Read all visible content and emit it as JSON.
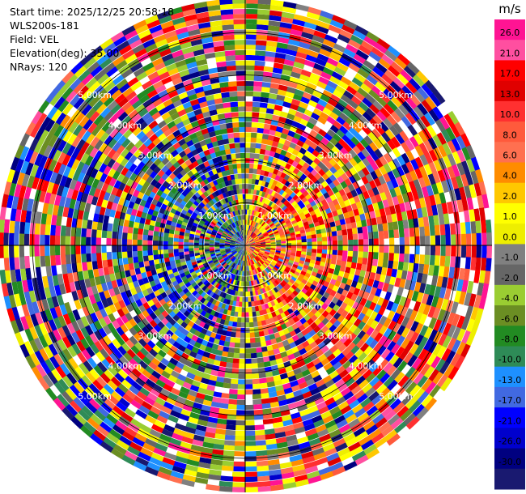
{
  "info": {
    "start_time": "Start time: 2025/12/25 20:58:18",
    "instrument": "WLS200s-181",
    "field": "Field: VEL",
    "elevation": "Elevation(deg): 35.00",
    "nrays": "NRays: 120"
  },
  "chart_data": {
    "type": "heatmap",
    "projection": "polar-ppi",
    "field": "VEL",
    "units": "m/s",
    "nrays": 120,
    "elevation_deg": 35.0,
    "range_rings_km": [
      1,
      2,
      3,
      4,
      5
    ],
    "range_ring_labels": [
      "1.00km",
      "2.00km",
      "3.00km",
      "4.00km",
      "5.00km"
    ],
    "max_range_km": 5.8,
    "colorbar": {
      "label": "m/s",
      "ticks": [
        "26.0",
        "21.0",
        "17.0",
        "13.0",
        "10.0",
        "8.0",
        "6.0",
        "4.0",
        "2.0",
        "1.0",
        "0.0",
        "-1.0",
        "-2.0",
        "-4.0",
        "-6.0",
        "-8.0",
        "-10.0",
        "-13.0",
        "-17.0",
        "-21.0",
        "-26.0",
        "-30.0"
      ],
      "colors": [
        "#ff1493",
        "#ff4fa0",
        "#ff0000",
        "#e00000",
        "#ff3030",
        "#ff5a3c",
        "#ff7050",
        "#ff8c00",
        "#ffc800",
        "#ffff00",
        "#eeee00",
        "#808080",
        "#666666",
        "#9acd32",
        "#6b8e23",
        "#228b22",
        "#2e8b57",
        "#1e90ff",
        "#4169e1",
        "#0000ff",
        "#0000cd",
        "#000080",
        "#191970"
      ]
    },
    "pattern_description_bins": {
      "inner_west_negative": "blue/green (approaching)",
      "inner_east_positive": "yellow/orange/red (receding)",
      "outer_ranges": "noisy, all colors"
    }
  }
}
